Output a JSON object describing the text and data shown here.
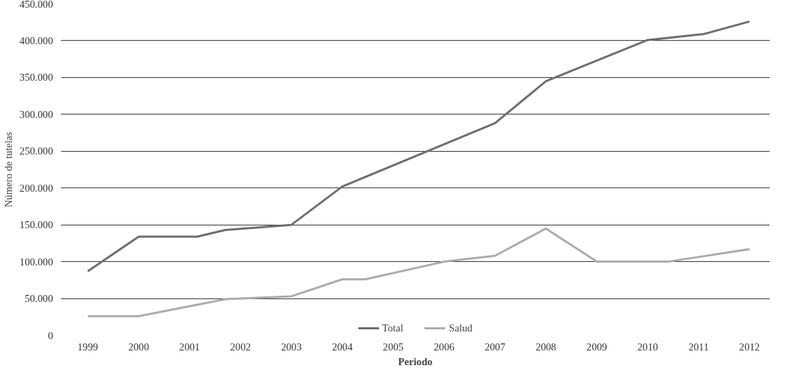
{
  "chart_data": {
    "type": "line",
    "xlabel": "Periodo",
    "ylabel": "Número de tutelas",
    "xlim": [
      1998.47,
      2012.4
    ],
    "xticks": [
      1999,
      2000,
      2001,
      2002,
      2003,
      2004,
      2005,
      2006,
      2007,
      2008,
      2009,
      2010,
      2011,
      2012
    ],
    "ylim": [
      0,
      450000
    ],
    "yticks": [
      0,
      {
        "value": 50000,
        "label": "50.000"
      },
      {
        "value": 100000,
        "label": "100.000"
      },
      {
        "value": 150000,
        "label": "150.000"
      },
      {
        "value": 200000,
        "label": "200.000"
      },
      {
        "value": 250000,
        "label": "250.000"
      },
      {
        "value": 300000,
        "label": "300.000"
      },
      {
        "value": 350000,
        "label": "350.000"
      },
      {
        "value": 400000,
        "label": "400.000"
      },
      {
        "value": 450000,
        "label": "450.000"
      }
    ],
    "grid": "y",
    "legend": "bottom",
    "marker": "none",
    "line_style": "solid",
    "series": [
      {
        "name": "Total",
        "color": "#6d6d6f",
        "x": [
          1999,
          2000,
          2001.15,
          2001.7,
          2003,
          2004,
          2007,
          2008,
          2010,
          2011.1,
          2012
        ],
        "values": [
          87000,
          134000,
          134000,
          143000,
          150000,
          202000,
          288000,
          345000,
          401000,
          409000,
          426000
        ]
      },
      {
        "name": "Salud",
        "color": "#ababad",
        "x": [
          1999,
          2000,
          2001.7,
          2003,
          2004,
          2004.45,
          2006,
          2007,
          2008,
          2009,
          2010.4,
          2012
        ],
        "values": [
          26000,
          26000,
          49000,
          53000,
          76000,
          76000,
          100000,
          108000,
          145000,
          100000,
          100000,
          117000
        ]
      }
    ]
  }
}
